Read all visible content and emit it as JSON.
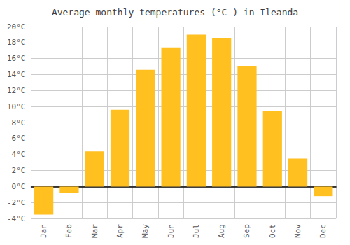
{
  "chart_data": {
    "type": "bar",
    "title": "Average monthly temperatures (°C ) in Ileanda",
    "categories": [
      "Jan",
      "Feb",
      "Mar",
      "Apr",
      "May",
      "Jun",
      "Jul",
      "Aug",
      "Sep",
      "Oct",
      "Nov",
      "Dec"
    ],
    "values": [
      -3.5,
      -0.8,
      4.4,
      9.6,
      14.6,
      17.4,
      19.0,
      18.6,
      15.0,
      9.5,
      3.5,
      -1.2
    ],
    "color": "#FFC020",
    "ylim": [
      -4,
      20
    ],
    "yticks": [
      {
        "value": -4,
        "label": "-4°C"
      },
      {
        "value": -2,
        "label": "-2°C"
      },
      {
        "value": 0,
        "label": "0°C"
      },
      {
        "value": 2,
        "label": "2°C"
      },
      {
        "value": 4,
        "label": "4°C"
      },
      {
        "value": 6,
        "label": "6°C"
      },
      {
        "value": 8,
        "label": "8°C"
      },
      {
        "value": 10,
        "label": "10°C"
      },
      {
        "value": 12,
        "label": "12°C"
      },
      {
        "value": 14,
        "label": "14°C"
      },
      {
        "value": 16,
        "label": "16°C"
      },
      {
        "value": 18,
        "label": "18°C"
      },
      {
        "value": 20,
        "label": "20°C"
      }
    ],
    "grid": true
  }
}
